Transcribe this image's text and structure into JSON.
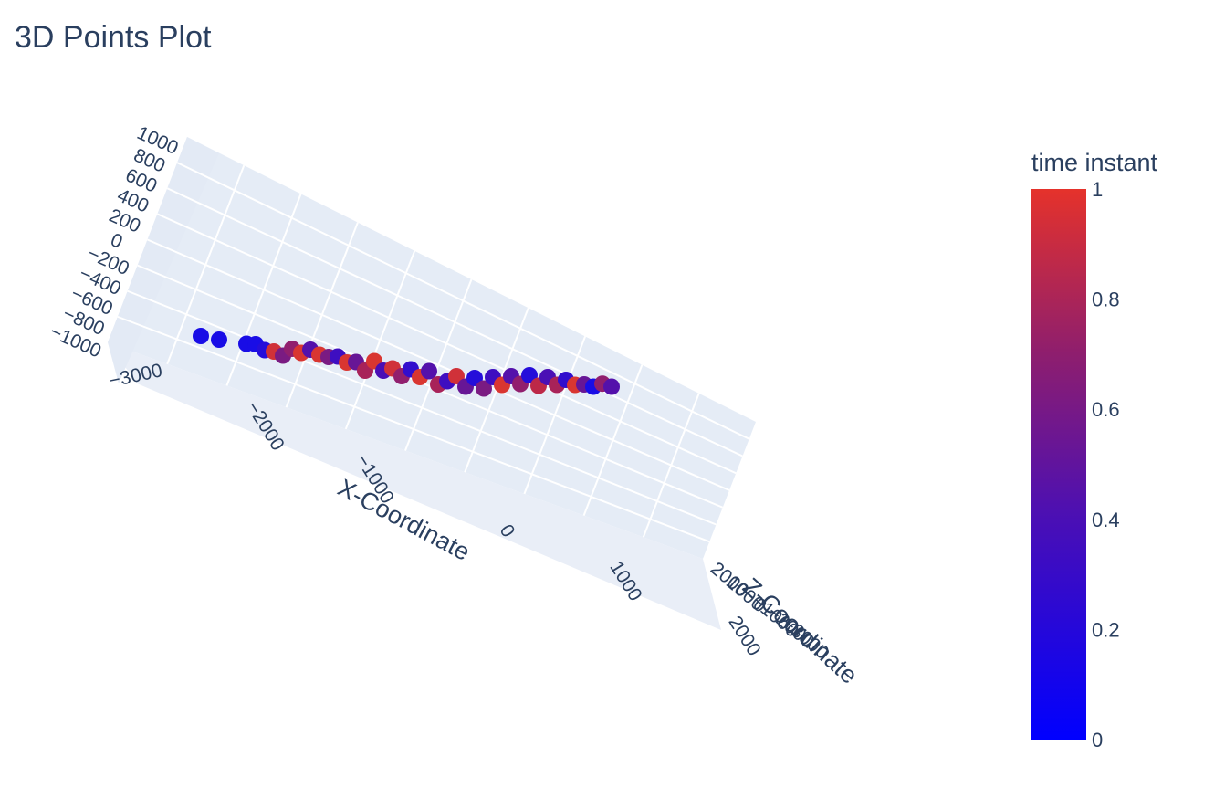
{
  "chart_data": {
    "type": "scatter",
    "title": "3D Points Plot",
    "xlabel": "X-Coordinate",
    "ylabel": "Y-Coordinate",
    "zlabel": "Z-Coordinate",
    "x_ticks": [
      "−3000",
      "−2000",
      "−1000",
      "0",
      "1000",
      "2000"
    ],
    "y_ticks": [
      "1000",
      "800",
      "600",
      "400",
      "200",
      "0",
      "−200",
      "−400",
      "−600",
      "−800",
      "−1000"
    ],
    "y_tick_values": [
      -1000,
      -800,
      -600,
      -400,
      -200,
      0,
      200,
      400,
      600,
      800,
      1000
    ],
    "z_ticks": [
      "2000",
      "1000",
      "0",
      "−1000",
      "−2000",
      "−3000"
    ],
    "colorbar": {
      "title": "time instant",
      "ticks": [
        "1",
        "0.8",
        "0.6",
        "0.4",
        "0.2",
        "0"
      ],
      "min": 0,
      "max": 1,
      "colors": [
        "#0000ff",
        "#e5322b"
      ]
    },
    "marker_colorscale": [
      "#0d0cf2",
      "#4a0fb5",
      "#7a1b82",
      "#b3244f",
      "#e33a2a"
    ],
    "points": [
      {
        "x": -3100,
        "y": -150,
        "z": 0,
        "t": 0.05
      },
      {
        "x": -2900,
        "y": -100,
        "z": 0,
        "t": 0.05
      },
      {
        "x": -2600,
        "y": 0,
        "z": 0,
        "t": 0.05
      },
      {
        "x": -2500,
        "y": 50,
        "z": 0,
        "t": 0.05
      },
      {
        "x": -2400,
        "y": 0,
        "z": 0,
        "t": 0.1
      },
      {
        "x": -2300,
        "y": 100,
        "z": -200,
        "t": 0.9
      },
      {
        "x": -2200,
        "y": 50,
        "z": -100,
        "t": 0.5
      },
      {
        "x": -2100,
        "y": 200,
        "z": 0,
        "t": 0.6
      },
      {
        "x": -2000,
        "y": 150,
        "z": 100,
        "t": 0.95
      },
      {
        "x": -1900,
        "y": 300,
        "z": 0,
        "t": 0.3
      },
      {
        "x": -1800,
        "y": 200,
        "z": 200,
        "t": 0.95
      },
      {
        "x": -1700,
        "y": 250,
        "z": 100,
        "t": 0.5
      },
      {
        "x": -1600,
        "y": 350,
        "z": 0,
        "t": 0.2
      },
      {
        "x": -1500,
        "y": 200,
        "z": 300,
        "t": 0.95
      },
      {
        "x": -1400,
        "y": 300,
        "z": 200,
        "t": 0.4
      },
      {
        "x": -1300,
        "y": 100,
        "z": 500,
        "t": 0.7
      },
      {
        "x": -1200,
        "y": 400,
        "z": 300,
        "t": 0.95
      },
      {
        "x": -1100,
        "y": 250,
        "z": 400,
        "t": 0.25
      },
      {
        "x": -1000,
        "y": 350,
        "z": 400,
        "t": 0.9
      },
      {
        "x": -900,
        "y": 200,
        "z": 600,
        "t": 0.6
      },
      {
        "x": -800,
        "y": 450,
        "z": 400,
        "t": 0.15
      },
      {
        "x": -700,
        "y": 300,
        "z": 600,
        "t": 0.95
      },
      {
        "x": -600,
        "y": 500,
        "z": 500,
        "t": 0.3
      },
      {
        "x": -500,
        "y": 250,
        "z": 700,
        "t": 0.7
      },
      {
        "x": -400,
        "y": 400,
        "z": 600,
        "t": 0.2
      },
      {
        "x": -300,
        "y": 550,
        "z": 600,
        "t": 0.9
      },
      {
        "x": -200,
        "y": 350,
        "z": 800,
        "t": 0.4
      },
      {
        "x": -100,
        "y": 600,
        "z": 700,
        "t": 0.1
      },
      {
        "x": 0,
        "y": 400,
        "z": 900,
        "t": 0.5
      },
      {
        "x": 100,
        "y": 700,
        "z": 800,
        "t": 0.2
      },
      {
        "x": 200,
        "y": 550,
        "z": 1000,
        "t": 0.95
      },
      {
        "x": 300,
        "y": 800,
        "z": 900,
        "t": 0.3
      },
      {
        "x": 400,
        "y": 650,
        "z": 1100,
        "t": 0.6
      },
      {
        "x": 500,
        "y": 900,
        "z": 1000,
        "t": 0.1
      },
      {
        "x": 600,
        "y": 700,
        "z": 1200,
        "t": 0.8
      },
      {
        "x": 700,
        "y": 950,
        "z": 1100,
        "t": 0.25
      },
      {
        "x": 800,
        "y": 800,
        "z": 1300,
        "t": 0.7
      },
      {
        "x": 900,
        "y": 950,
        "z": 1300,
        "t": 0.15
      },
      {
        "x": 1000,
        "y": 850,
        "z": 1500,
        "t": 0.95
      },
      {
        "x": 1100,
        "y": 950,
        "z": 1400,
        "t": 0.4
      },
      {
        "x": 1200,
        "y": 900,
        "z": 1600,
        "t": 0.05
      },
      {
        "x": 1300,
        "y": 980,
        "z": 1700,
        "t": 0.6
      },
      {
        "x": 1400,
        "y": 950,
        "z": 1800,
        "t": 0.3
      }
    ]
  }
}
